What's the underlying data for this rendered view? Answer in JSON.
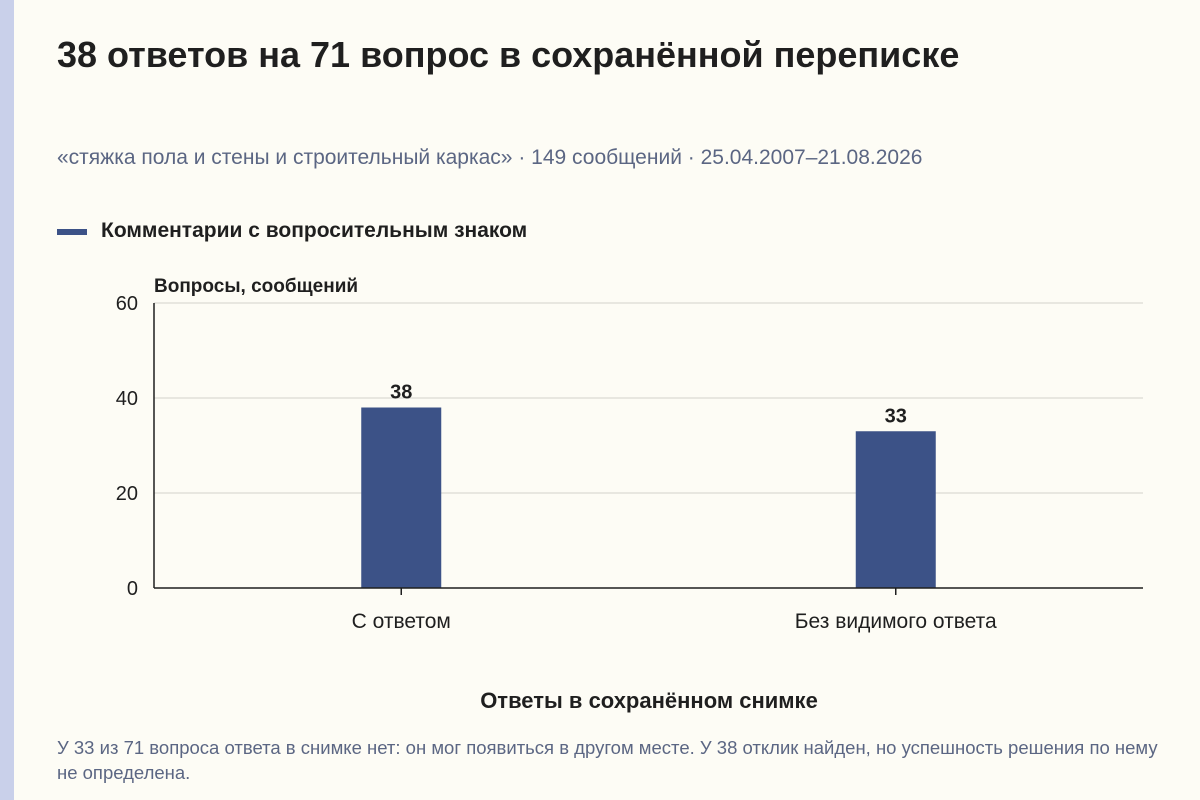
{
  "chart_data": {
    "type": "bar",
    "title": "38 ответов на 71 вопрос в сохранённой переписке",
    "subtitle": "«стяжка пола и стены и строительный каркас» · 149 сообщений · 25.04.2007–21.08.2026",
    "categories": [
      "С ответом",
      "Без видимого ответа"
    ],
    "series": [
      {
        "name": "Комментарии с вопросительным знаком",
        "values": [
          38,
          33
        ]
      }
    ],
    "ylabel": "Вопросы, сообщений",
    "xlabel": "Ответы в сохранённом снимке",
    "ylim": [
      0,
      60
    ],
    "yticks": [
      0,
      20,
      40,
      60
    ],
    "grid": true,
    "legend_position": "top-left",
    "bar_color": "#3c5287"
  },
  "footnote": "У 33 из 71 вопроса ответа в снимке нет: он мог появиться в другом месте. У 38 отклик найден, но успешность решения по нему не определена."
}
